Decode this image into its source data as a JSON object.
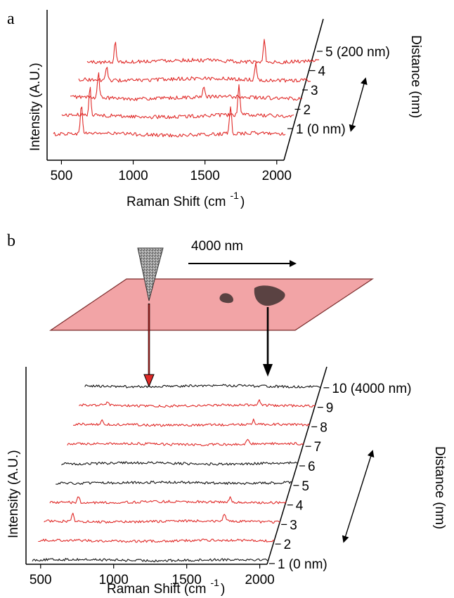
{
  "colors": {
    "red": "#e02a28",
    "black": "#111111",
    "surface": "#f0a0a3",
    "surface_stroke": "#7a2020",
    "particle": "#5a4242"
  },
  "chart_data": [
    {
      "panel": "a",
      "type": "line",
      "title": "",
      "xlabel": "Raman Shift (cm",
      "xlabel_sup": "-1",
      "xlabel_end": ")",
      "ylabel": "Intensity (A.U.)",
      "zlabel": "Distance (nm)",
      "xlim": [
        400,
        2050
      ],
      "xticks": [
        "500",
        "1000",
        "1500",
        "2000"
      ],
      "series": [
        {
          "label": "1 (0 nm)",
          "color": "#e02a28",
          "peaks": [
            [
              600,
              1.0
            ],
            [
              1660,
              0.95
            ]
          ]
        },
        {
          "label": "2",
          "color": "#e02a28",
          "peaks": [
            [
              600,
              1.0
            ],
            [
              1660,
              1.0
            ]
          ]
        },
        {
          "label": "3",
          "color": "#e02a28",
          "peaks": [
            [
              600,
              0.85
            ],
            [
              1350,
              0.3
            ]
          ]
        },
        {
          "label": "4",
          "color": "#e02a28",
          "peaks": [
            [
              600,
              0.5
            ],
            [
              1660,
              0.55
            ]
          ]
        },
        {
          "label": "5 (200 nm)",
          "color": "#e02a28",
          "peaks": [
            [
              600,
              0.7
            ],
            [
              1660,
              0.8
            ]
          ]
        }
      ]
    },
    {
      "panel": "b",
      "type": "line",
      "title": "",
      "xlabel": "Raman Shift (cm",
      "xlabel_sup": "-1",
      "xlabel_end": ")",
      "ylabel": "Intensity (A.U.)",
      "zlabel": "Distance (nm)",
      "xlim": [
        400,
        2050
      ],
      "xticks": [
        "500",
        "1000",
        "1500",
        "2000"
      ],
      "scale_label": "4000 nm",
      "series": [
        {
          "label": "1 (0 nm)",
          "color": "#111111",
          "peaks": []
        },
        {
          "label": "2",
          "color": "#e02a28",
          "peaks": []
        },
        {
          "label": "3",
          "color": "#e02a28",
          "peaks": [
            [
              600,
              0.6
            ],
            [
              1660,
              0.6
            ]
          ]
        },
        {
          "label": "4",
          "color": "#e02a28",
          "peaks": [
            [
              600,
              0.5
            ],
            [
              1660,
              0.4
            ]
          ]
        },
        {
          "label": "5",
          "color": "#111111",
          "peaks": []
        },
        {
          "label": "6",
          "color": "#111111",
          "peaks": []
        },
        {
          "label": "7",
          "color": "#e02a28",
          "peaks": [
            [
              1660,
              0.4
            ]
          ]
        },
        {
          "label": "8",
          "color": "#e02a28",
          "peaks": [
            [
              600,
              0.3
            ],
            [
              1660,
              0.35
            ]
          ]
        },
        {
          "label": "9",
          "color": "#e02a28",
          "peaks": [
            [
              600,
              0.3
            ],
            [
              1660,
              0.45
            ]
          ]
        },
        {
          "label": "10 (4000 nm)",
          "color": "#111111",
          "peaks": []
        }
      ]
    }
  ]
}
